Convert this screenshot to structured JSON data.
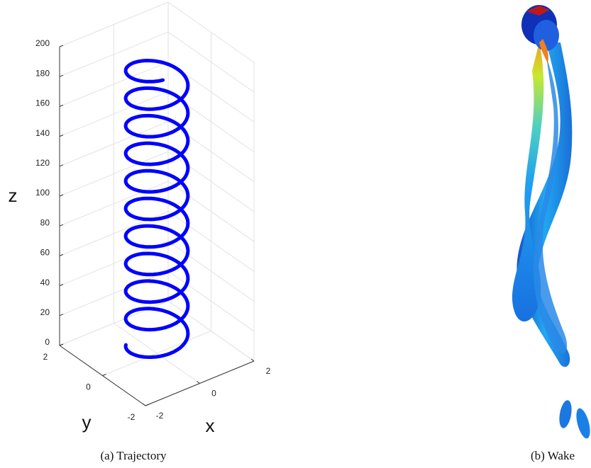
{
  "chart_data": {
    "type": "helix3d",
    "xlabel": "x",
    "ylabel": "y",
    "zlabel": "z",
    "xlim": [
      -2,
      2
    ],
    "ylim": [
      -2,
      2
    ],
    "zlim": [
      0,
      200
    ],
    "xticks": [
      -2,
      0,
      2
    ],
    "yticks": [
      -2,
      0,
      2
    ],
    "zticks": [
      0,
      20,
      40,
      60,
      80,
      100,
      120,
      140,
      160,
      180,
      200
    ],
    "color": "#0000ff",
    "grid": true
  },
  "captions": [
    "(a) Trajectory",
    "(b) Wake"
  ]
}
